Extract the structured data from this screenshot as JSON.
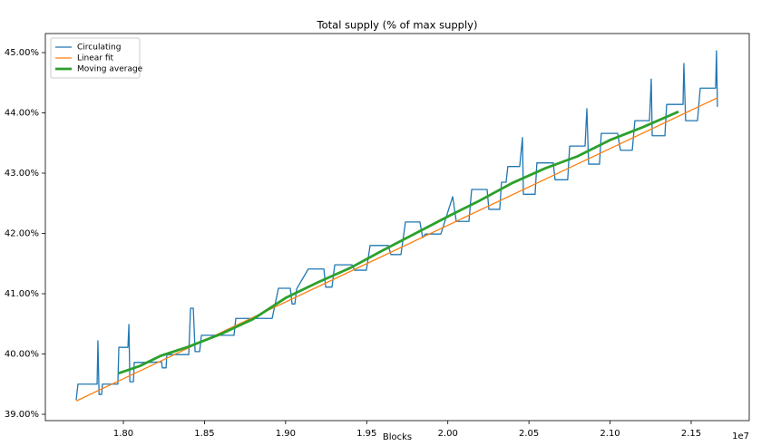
{
  "chart_data": {
    "type": "line",
    "title": "Total supply (% of max supply)",
    "x_label": "Blocks",
    "x_offset_label": "1e7",
    "xlim": [
      1.7519,
      2.1858
    ],
    "ylim": [
      38.895,
      45.316
    ],
    "xticks": [
      {
        "value": 1.8,
        "label": "1.80"
      },
      {
        "value": 1.85,
        "label": "1.85"
      },
      {
        "value": 1.9,
        "label": "1.90"
      },
      {
        "value": 1.95,
        "label": "1.95"
      },
      {
        "value": 2.0,
        "label": "2.00"
      },
      {
        "value": 2.05,
        "label": "2.05"
      },
      {
        "value": 2.1,
        "label": "2.10"
      },
      {
        "value": 2.15,
        "label": "2.15"
      }
    ],
    "yticks": [
      {
        "value": 39,
        "label": "39.00%"
      },
      {
        "value": 40,
        "label": "40.00%"
      },
      {
        "value": 41,
        "label": "41.00%"
      },
      {
        "value": 42,
        "label": "42.00%"
      },
      {
        "value": 43,
        "label": "43.00%"
      },
      {
        "value": 44,
        "label": "44.00%"
      },
      {
        "value": 45,
        "label": "45.00%"
      }
    ],
    "grid": false,
    "legend": "upper-left",
    "series": [
      {
        "name": "Circulating",
        "color": "#1f77b4",
        "width": 1.3,
        "x": [
          1.7709,
          1.772,
          1.7838,
          1.7843,
          1.785,
          1.7866,
          1.7871,
          1.7966,
          1.7972,
          1.8028,
          1.8034,
          1.804,
          1.8062,
          1.8067,
          1.8162,
          1.8235,
          1.824,
          1.8263,
          1.8268,
          1.8403,
          1.8414,
          1.8431,
          1.8442,
          1.847,
          1.8481,
          1.8682,
          1.8693,
          1.8917,
          1.8956,
          1.9029,
          1.904,
          1.9057,
          1.9068,
          1.914,
          1.9236,
          1.9247,
          1.9286,
          1.9303,
          1.9409,
          1.9426,
          1.9498,
          1.9521,
          1.9633,
          1.9649,
          1.9711,
          1.9739,
          1.9828,
          1.9845,
          1.9862,
          1.9957,
          2.003,
          2.0052,
          2.013,
          2.0147,
          2.0242,
          2.0253,
          2.032,
          2.0331,
          2.0359,
          2.037,
          2.0443,
          2.046,
          2.0466,
          2.0538,
          2.0549,
          2.065,
          2.0661,
          2.0739,
          2.0751,
          2.0846,
          2.0857,
          2.0868,
          2.0935,
          2.0946,
          2.1047,
          2.1064,
          2.1137,
          2.1153,
          2.1243,
          2.1254,
          2.126,
          2.1338,
          2.1349,
          2.145,
          2.1455,
          2.1466,
          2.1539,
          2.1556,
          2.1651,
          2.1656,
          2.1662
        ],
        "values": [
          39.24,
          39.5,
          39.5,
          40.22,
          39.33,
          39.33,
          39.5,
          39.5,
          40.11,
          40.11,
          40.49,
          39.54,
          39.54,
          39.86,
          39.86,
          39.87,
          39.77,
          39.77,
          39.99,
          39.99,
          40.76,
          40.76,
          40.04,
          40.04,
          40.31,
          40.31,
          40.59,
          40.59,
          41.09,
          41.09,
          40.83,
          40.83,
          41.08,
          41.41,
          41.41,
          41.11,
          41.11,
          41.48,
          41.48,
          41.39,
          41.39,
          41.8,
          41.8,
          41.65,
          41.65,
          42.19,
          42.19,
          41.93,
          41.99,
          41.99,
          42.61,
          42.2,
          42.2,
          42.73,
          42.73,
          42.4,
          42.4,
          42.85,
          42.85,
          43.11,
          43.11,
          43.59,
          42.65,
          42.65,
          43.17,
          43.17,
          42.89,
          42.89,
          43.45,
          43.45,
          44.07,
          43.15,
          43.15,
          43.66,
          43.66,
          43.38,
          43.38,
          43.87,
          43.87,
          44.56,
          43.62,
          43.62,
          44.14,
          44.14,
          44.82,
          43.87,
          43.87,
          44.41,
          44.41,
          45.03,
          44.1
        ]
      },
      {
        "name": "Linear fit",
        "color": "#ff7f0e",
        "width": 1.3,
        "x": [
          1.7709,
          2.1662
        ],
        "values": [
          39.22,
          44.25
        ]
      },
      {
        "name": "Moving average",
        "color": "#2ca02c",
        "width": 2.8,
        "x": [
          1.797,
          1.81,
          1.823,
          1.84,
          1.86,
          1.88,
          1.9,
          1.92,
          1.94,
          1.96,
          1.98,
          2.0,
          2.02,
          2.04,
          2.06,
          2.08,
          2.1,
          2.12,
          2.1422
        ],
        "values": [
          39.68,
          39.8,
          39.97,
          40.12,
          40.33,
          40.58,
          40.93,
          41.19,
          41.43,
          41.72,
          42.0,
          42.28,
          42.55,
          42.84,
          43.08,
          43.28,
          43.55,
          43.76,
          44.02
        ]
      }
    ]
  }
}
